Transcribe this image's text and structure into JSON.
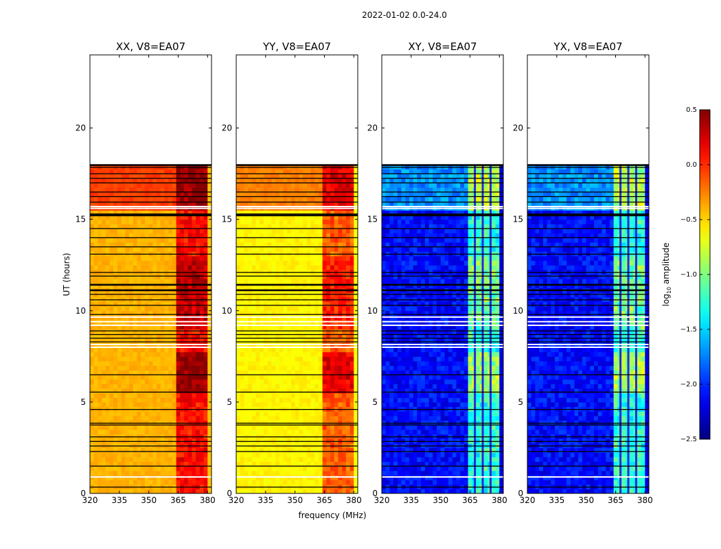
{
  "figure": {
    "suptitle": "2022-01-02 0.0-24.0"
  },
  "chart_data": {
    "type": "heatmap",
    "ylabel": "UT (hours)",
    "xlabel": "frequency (MHz)",
    "xlim": [
      320,
      382
    ],
    "ylim": [
      0,
      24
    ],
    "xticks": [
      320,
      335,
      350,
      365,
      380
    ],
    "yticks": [
      0,
      5,
      10,
      15,
      20
    ],
    "data_time_range": [
      0,
      18.0
    ],
    "panels": [
      {
        "title": "XX, V8=EA07",
        "pol": "XX",
        "base": -0.4,
        "band": 0.05
      },
      {
        "title": "YY, V8=EA07",
        "pol": "YY",
        "base": -0.6,
        "band": 0.0
      },
      {
        "title": "XY, V8=EA07",
        "pol": "XY",
        "base": -2.1,
        "band": -0.7
      },
      {
        "title": "YX, V8=EA07",
        "pol": "YX",
        "base": -2.1,
        "band": -0.7
      }
    ],
    "rfi_band_mhz": [
      363.5,
      380
    ],
    "rfi_channels_mhz": [
      367.5,
      371.5,
      375.5
    ],
    "colorbar": {
      "label": "log10 amplitude",
      "label_main": "log",
      "label_sub": "10",
      "label_rest": " amplitude",
      "range": [
        -2.5,
        0.5
      ],
      "ticks": [
        -2.5,
        -2.0,
        -1.5,
        -1.0,
        -0.5,
        0.0,
        0.5
      ],
      "tick_labels": [
        "−2.5",
        "−2.0",
        "−1.5",
        "−1.0",
        "−0.5",
        "0.0",
        "0.5"
      ],
      "colormap": "jet"
    },
    "flagged_rows_black_ut": [
      0.35,
      1.5,
      2.3,
      2.6,
      2.85,
      3.1,
      3.75,
      3.85,
      4.6,
      5.55,
      6.5,
      8.3,
      8.5,
      8.7,
      8.9,
      9.8,
      10.3,
      10.6,
      10.9,
      11.1,
      11.15,
      11.4,
      11.45,
      11.9,
      12.1,
      13.1,
      13.5,
      14.0,
      14.5,
      15.2,
      15.25,
      15.3,
      15.95,
      16.25,
      16.5,
      17.0,
      17.25,
      17.5,
      17.85,
      17.95,
      18.0
    ],
    "flagged_rows_white_ut": [
      0.9,
      8.0,
      8.15,
      9.2,
      9.4,
      9.65,
      15.6,
      15.7
    ]
  }
}
